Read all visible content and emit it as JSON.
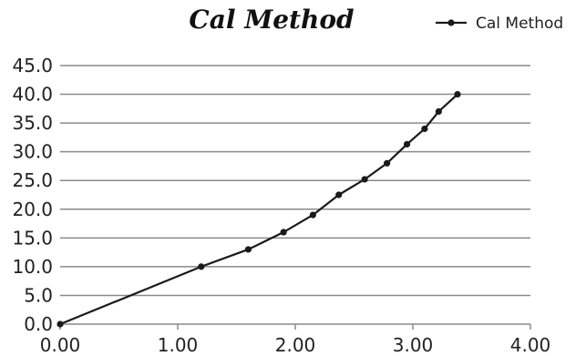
{
  "chart_data": {
    "type": "line",
    "title": "Cal Method",
    "xlabel": "",
    "ylabel": "",
    "xlim": [
      0,
      4
    ],
    "ylim": [
      0,
      45
    ],
    "x_ticks": [
      "0.00",
      "1.00",
      "2.00",
      "3.00",
      "4.00"
    ],
    "y_ticks": [
      "0.0",
      "5.0",
      "10.0",
      "15.0",
      "20.0",
      "25.0",
      "30.0",
      "35.0",
      "40.0",
      "45.0"
    ],
    "grid": "horizontal",
    "legend_position": "top-right",
    "series": [
      {
        "name": "Cal Method",
        "color": "#1a1a1a",
        "points": [
          {
            "x": 0.0,
            "y": 0.0
          },
          {
            "x": 1.2,
            "y": 10.0
          },
          {
            "x": 1.6,
            "y": 13.0
          },
          {
            "x": 1.9,
            "y": 16.0
          },
          {
            "x": 2.15,
            "y": 19.0
          },
          {
            "x": 2.37,
            "y": 22.5
          },
          {
            "x": 2.59,
            "y": 25.2
          },
          {
            "x": 2.78,
            "y": 28.0
          },
          {
            "x": 2.95,
            "y": 31.3
          },
          {
            "x": 3.1,
            "y": 34.0
          },
          {
            "x": 3.22,
            "y": 37.0
          },
          {
            "x": 3.38,
            "y": 40.0
          }
        ]
      }
    ]
  }
}
